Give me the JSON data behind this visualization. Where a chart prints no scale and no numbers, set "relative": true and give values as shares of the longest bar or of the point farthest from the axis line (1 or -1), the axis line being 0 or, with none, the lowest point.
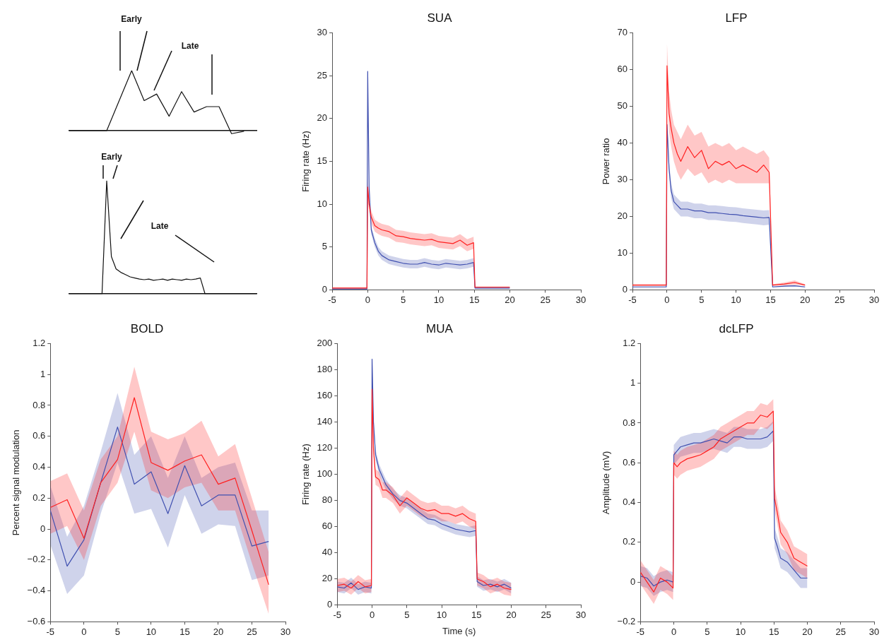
{
  "chart_data": [
    {
      "type": "line",
      "relative": true,
      "categories": [
        null,
        null,
        null,
        null,
        null,
        null,
        null,
        null,
        null,
        null,
        null,
        null,
        null,
        null,
        null,
        null
      ],
      "annotations": [
        "Early",
        "Late"
      ],
      "series": [
        {
          "color": "#111111",
          "values": [
            0,
            0,
            0,
            0,
            0.5,
            1,
            0.5,
            0.61,
            0.24,
            0.65,
            0.31,
            0.4,
            0.4,
            -0.05,
            -0.01,
            null
          ]
        }
      ]
    },
    {
      "type": "line",
      "relative": true,
      "categories": [
        null,
        null,
        null,
        null,
        null,
        null,
        null,
        null,
        null,
        null,
        null,
        null,
        null,
        null,
        null,
        null,
        null,
        null,
        null,
        null,
        null,
        null,
        null,
        null,
        null,
        null,
        null,
        null,
        null,
        null,
        null,
        null,
        null,
        null,
        null,
        null,
        null,
        null,
        null,
        null,
        null
      ],
      "annotations": [
        "Early",
        "Late"
      ],
      "series": [
        {
          "color": "#111111",
          "values": [
            0,
            0,
            0,
            0,
            0,
            0,
            0,
            0,
            1,
            0.33,
            0.22,
            0.19,
            0.17,
            0.15,
            0.14,
            0.13,
            0.125,
            0.13,
            0.12,
            0.125,
            0.13,
            0.12,
            0.13,
            0.125,
            0.12,
            0.13,
            0.125,
            0.13,
            0.14,
            0,
            0,
            0,
            0,
            0,
            0,
            0,
            0,
            0,
            0,
            0,
            0
          ]
        }
      ]
    },
    {
      "type": "line",
      "title": "SUA",
      "ylabel": "Firing rate (Hz)",
      "xlim": [
        -5,
        30
      ],
      "xticks": [
        -5,
        0,
        5,
        10,
        15,
        20,
        25,
        30
      ],
      "ylim": [
        0,
        30
      ],
      "yticks": [
        0,
        5,
        10,
        15,
        20,
        25,
        30
      ],
      "x": [
        -5,
        -2.5,
        -0.1,
        0,
        0.2,
        0.5,
        1,
        1.5,
        2,
        3,
        4,
        5,
        6,
        7,
        8,
        9,
        10,
        11,
        12,
        13,
        14,
        14.9,
        15.1,
        17.5,
        20
      ],
      "series": [
        {
          "color": "#ff2020",
          "values": [
            0.2,
            0.2,
            0.2,
            12,
            10,
            8.5,
            7.5,
            7.2,
            7,
            6.8,
            6.3,
            6.2,
            6,
            5.9,
            5.8,
            5.9,
            5.6,
            5.5,
            5.4,
            5.8,
            5.2,
            5.5,
            0.3,
            0.3,
            0.3
          ],
          "lower": [
            0.1,
            0.1,
            0.1,
            11,
            9.2,
            7.8,
            6.8,
            6.5,
            6.3,
            6.1,
            5.6,
            5.5,
            5.3,
            5.2,
            5.1,
            5.2,
            4.9,
            4.8,
            4.7,
            5.1,
            4.5,
            4.8,
            0.2,
            0.2,
            0.2
          ],
          "upper": [
            0.3,
            0.3,
            0.3,
            13,
            10.8,
            9.2,
            8.2,
            7.9,
            7.7,
            7.5,
            7,
            6.9,
            6.7,
            6.6,
            6.5,
            6.6,
            6.3,
            6.2,
            6.1,
            6.5,
            5.9,
            6.2,
            0.4,
            0.4,
            0.4
          ]
        },
        {
          "color": "#4050b0",
          "values": [
            0.1,
            0.1,
            0.1,
            25.5,
            12,
            7,
            5.5,
            4.5,
            4,
            3.5,
            3.3,
            3.1,
            3,
            3,
            3.2,
            3,
            2.9,
            3.1,
            3,
            2.9,
            3,
            3.2,
            0.2,
            0.2,
            0.2
          ],
          "lower": [
            0.05,
            0.05,
            0.05,
            25,
            11.5,
            6.5,
            5,
            4,
            3.5,
            3,
            2.8,
            2.6,
            2.5,
            2.5,
            2.7,
            2.5,
            2.4,
            2.6,
            2.5,
            2.4,
            2.5,
            2.7,
            0.1,
            0.1,
            0.1
          ],
          "upper": [
            0.15,
            0.15,
            0.15,
            26,
            12.5,
            7.5,
            6,
            5,
            4.5,
            4,
            3.8,
            3.6,
            3.5,
            3.5,
            3.7,
            3.5,
            3.4,
            3.6,
            3.5,
            3.4,
            3.5,
            3.7,
            0.3,
            0.3,
            0.3
          ]
        }
      ]
    },
    {
      "type": "line",
      "title": "LFP",
      "ylabel": "Power ratio",
      "xlim": [
        -5,
        30
      ],
      "xticks": [
        -5,
        0,
        5,
        10,
        15,
        20,
        25,
        30
      ],
      "ylim": [
        0,
        70
      ],
      "yticks": [
        0,
        10,
        20,
        30,
        40,
        50,
        60,
        70
      ],
      "x": [
        -5,
        -2.5,
        -0.1,
        0,
        0.3,
        0.6,
        1,
        1.5,
        2,
        3,
        4,
        5,
        6,
        7,
        8,
        9,
        10,
        11,
        12,
        13,
        14,
        14.8,
        15.3,
        17,
        18.5,
        20
      ],
      "series": [
        {
          "color": "#ff2020",
          "values": [
            1.3,
            1.3,
            1.3,
            61,
            48,
            44,
            40,
            37,
            35,
            39,
            36,
            38,
            33,
            35,
            34,
            35,
            33,
            34,
            33,
            32,
            34,
            32,
            1.3,
            1.6,
            2,
            1.3
          ],
          "lower": [
            1.1,
            1.1,
            1.1,
            55,
            43,
            39,
            35,
            32,
            30,
            33,
            31,
            32,
            29,
            30,
            29,
            30,
            29,
            29,
            29,
            29,
            29,
            29,
            1.1,
            1.2,
            1.4,
            1.1
          ],
          "upper": [
            1.5,
            1.5,
            1.5,
            67,
            54,
            49,
            45,
            43,
            41,
            45,
            42,
            43,
            39,
            40,
            39,
            40,
            38,
            39,
            38,
            37,
            38,
            36,
            1.5,
            2,
            2.6,
            1.5
          ]
        },
        {
          "color": "#4050b0",
          "values": [
            0.8,
            0.8,
            0.8,
            45,
            33,
            27,
            24,
            23,
            22,
            22,
            21.5,
            21.5,
            21,
            21,
            20.8,
            20.6,
            20.5,
            20.2,
            20,
            19.8,
            19.6,
            19.7,
            0.8,
            1,
            1.1,
            0.8
          ],
          "lower": [
            0.7,
            0.7,
            0.7,
            43,
            31,
            25,
            22,
            21,
            20,
            20,
            19.5,
            19.5,
            19,
            19,
            18.8,
            18.6,
            18.5,
            18.2,
            18,
            17.8,
            17.6,
            17.7,
            0.7,
            0.8,
            0.9,
            0.7
          ],
          "upper": [
            0.9,
            0.9,
            0.9,
            47,
            35,
            29,
            26,
            25,
            24,
            24,
            23.5,
            23.5,
            23,
            23,
            22.8,
            22.6,
            22.5,
            22.2,
            22,
            21.8,
            21.6,
            21.7,
            0.9,
            1.2,
            1.3,
            0.9
          ]
        }
      ]
    },
    {
      "type": "line",
      "title": "BOLD",
      "ylabel": "Percent signal modulation",
      "xlim": [
        -5,
        30
      ],
      "xticks": [
        -5,
        0,
        5,
        10,
        15,
        20,
        25,
        30
      ],
      "ylim": [
        -0.6,
        1.2
      ],
      "yticks": [
        {
          "value": -0.6,
          "label": "−0.6"
        },
        {
          "value": -0.4,
          "label": "−0.4"
        },
        {
          "value": -0.2,
          "label": "−0.2"
        },
        0,
        0.2,
        0.4,
        0.6,
        0.8,
        1,
        1.2
      ],
      "x": [
        -5,
        -2.5,
        0,
        2.5,
        5,
        7.5,
        10,
        12.5,
        15,
        17.5,
        20,
        22.5,
        25,
        27.5
      ],
      "series": [
        {
          "color": "#ff2020",
          "values": [
            0.14,
            0.19,
            -0.06,
            0.3,
            0.45,
            0.85,
            0.43,
            0.38,
            0.44,
            0.48,
            0.29,
            0.33,
            -0.01,
            -0.36
          ],
          "lower": [
            -0.03,
            0.02,
            -0.2,
            0.15,
            0.3,
            0.63,
            0.25,
            0.2,
            0.27,
            0.3,
            0.12,
            0.12,
            -0.22,
            -0.55
          ],
          "upper": [
            0.31,
            0.36,
            0.12,
            0.45,
            0.6,
            1.05,
            0.63,
            0.58,
            0.62,
            0.7,
            0.47,
            0.55,
            0.2,
            -0.15
          ]
        },
        {
          "color": "#4050b0",
          "values": [
            0.12,
            -0.24,
            -0.07,
            0.3,
            0.66,
            0.29,
            0.37,
            0.1,
            0.41,
            0.15,
            0.22,
            0.22,
            -0.11,
            -0.08
          ],
          "lower": [
            -0.1,
            -0.42,
            -0.3,
            0.1,
            0.43,
            0.1,
            0.13,
            -0.12,
            0.22,
            -0.03,
            0.03,
            0.02,
            -0.33,
            -0.3
          ],
          "upper": [
            0.28,
            -0.05,
            0.15,
            0.5,
            0.88,
            0.48,
            0.6,
            0.33,
            0.6,
            0.33,
            0.4,
            0.43,
            0.12,
            0.12
          ]
        }
      ]
    },
    {
      "type": "line",
      "title": "MUA",
      "xlabel": "Time (s)",
      "ylabel": "Firing rate (Hz)",
      "xlim": [
        -5,
        30
      ],
      "xticks": [
        -5,
        0,
        5,
        10,
        15,
        20,
        25,
        30
      ],
      "ylim": [
        0,
        200
      ],
      "yticks": [
        0,
        20,
        40,
        60,
        80,
        100,
        120,
        140,
        160,
        180,
        200
      ],
      "x": [
        -5,
        -4,
        -3,
        -2,
        -1,
        -0.1,
        0,
        0.2,
        0.5,
        1,
        1.5,
        2,
        3,
        4,
        5,
        6,
        7,
        8,
        9,
        10,
        11,
        12,
        13,
        14,
        14.9,
        15.1,
        16,
        17,
        18,
        19,
        20
      ],
      "series": [
        {
          "color": "#ff2020",
          "values": [
            15,
            16,
            13,
            18,
            14,
            15,
            165,
            120,
            98,
            96,
            88,
            88,
            84,
            76,
            82,
            78,
            74,
            72,
            73,
            70,
            70,
            68,
            70,
            66,
            64,
            20,
            18,
            14,
            16,
            13,
            12
          ],
          "lower": [
            10,
            11,
            8,
            13,
            9,
            10,
            159,
            114,
            92,
            90,
            82,
            82,
            78,
            70,
            76,
            72,
            68,
            66,
            67,
            64,
            64,
            62,
            64,
            60,
            58,
            15,
            13,
            9,
            11,
            8,
            7
          ],
          "upper": [
            20,
            21,
            18,
            23,
            19,
            20,
            171,
            126,
            104,
            102,
            94,
            94,
            90,
            82,
            88,
            84,
            80,
            78,
            79,
            76,
            76,
            74,
            76,
            72,
            70,
            25,
            23,
            19,
            21,
            18,
            17
          ]
        },
        {
          "color": "#4050b0",
          "values": [
            14,
            13,
            17,
            12,
            14,
            13,
            188,
            140,
            115,
            104,
            98,
            92,
            85,
            80,
            78,
            74,
            70,
            66,
            65,
            62,
            60,
            58,
            57,
            56,
            57,
            18,
            15,
            16,
            14,
            16,
            13
          ],
          "lower": [
            10,
            9,
            13,
            8,
            10,
            9,
            184,
            136,
            111,
            100,
            94,
            88,
            81,
            76,
            74,
            70,
            66,
            62,
            61,
            58,
            56,
            54,
            53,
            52,
            53,
            14,
            11,
            12,
            10,
            12,
            9
          ],
          "upper": [
            18,
            17,
            21,
            16,
            18,
            17,
            192,
            144,
            119,
            108,
            102,
            96,
            89,
            84,
            82,
            78,
            74,
            70,
            69,
            66,
            64,
            62,
            61,
            60,
            61,
            22,
            19,
            20,
            18,
            20,
            17
          ]
        }
      ]
    },
    {
      "type": "line",
      "title": "dcLFP",
      "ylabel": "Amplitude (mV)",
      "xlim": [
        -5,
        30
      ],
      "xticks": [
        -5,
        0,
        5,
        10,
        15,
        20,
        25,
        30
      ],
      "ylim": [
        -0.2,
        1.2
      ],
      "yticks": [
        {
          "value": -0.2,
          "label": "−0.2"
        },
        0,
        0.2,
        0.4,
        0.6,
        0.8,
        1,
        1.2
      ],
      "x": [
        -5,
        -4,
        -3,
        -2,
        -1,
        -0.1,
        0,
        0.5,
        1,
        2,
        3,
        4,
        5,
        6,
        7,
        8,
        9,
        10,
        11,
        12,
        13,
        14,
        14.9,
        15.1,
        15.5,
        16,
        17,
        18,
        19,
        20
      ],
      "series": [
        {
          "color": "#ff2020",
          "values": [
            0.05,
            0,
            -0.05,
            0.02,
            0,
            -0.03,
            0.6,
            0.58,
            0.6,
            0.62,
            0.63,
            0.64,
            0.66,
            0.68,
            0.72,
            0.74,
            0.76,
            0.78,
            0.8,
            0.8,
            0.84,
            0.83,
            0.86,
            0.42,
            0.35,
            0.25,
            0.2,
            0.12,
            0.1,
            0.08
          ],
          "lower": [
            -0.01,
            -0.06,
            -0.11,
            -0.04,
            -0.06,
            -0.09,
            0.54,
            0.52,
            0.54,
            0.56,
            0.57,
            0.58,
            0.6,
            0.62,
            0.66,
            0.68,
            0.7,
            0.72,
            0.74,
            0.74,
            0.78,
            0.77,
            0.8,
            0.36,
            0.29,
            0.19,
            0.14,
            0.06,
            0.04,
            0.02
          ],
          "upper": [
            0.11,
            0.06,
            0.01,
            0.08,
            0.06,
            0.03,
            0.66,
            0.64,
            0.66,
            0.68,
            0.69,
            0.7,
            0.72,
            0.74,
            0.78,
            0.8,
            0.82,
            0.84,
            0.86,
            0.86,
            0.9,
            0.89,
            0.92,
            0.48,
            0.41,
            0.31,
            0.26,
            0.18,
            0.16,
            0.14
          ]
        },
        {
          "color": "#4050b0",
          "values": [
            0.03,
            0.02,
            -0.02,
            0,
            0.01,
            0,
            0.64,
            0.66,
            0.68,
            0.69,
            0.7,
            0.7,
            0.71,
            0.72,
            0.71,
            0.7,
            0.73,
            0.73,
            0.72,
            0.72,
            0.72,
            0.73,
            0.76,
            0.22,
            0.18,
            0.12,
            0.1,
            0.06,
            0.02,
            0.02
          ],
          "lower": [
            -0.02,
            -0.03,
            -0.07,
            -0.05,
            -0.04,
            -0.05,
            0.59,
            0.61,
            0.63,
            0.64,
            0.65,
            0.65,
            0.66,
            0.67,
            0.66,
            0.65,
            0.68,
            0.68,
            0.67,
            0.67,
            0.67,
            0.68,
            0.71,
            0.17,
            0.13,
            0.07,
            0.05,
            0.01,
            -0.03,
            -0.03
          ],
          "upper": [
            0.08,
            0.07,
            0.03,
            0.05,
            0.06,
            0.05,
            0.69,
            0.71,
            0.73,
            0.74,
            0.75,
            0.75,
            0.76,
            0.77,
            0.76,
            0.75,
            0.78,
            0.78,
            0.77,
            0.77,
            0.77,
            0.78,
            0.81,
            0.27,
            0.23,
            0.17,
            0.15,
            0.11,
            0.07,
            0.07
          ]
        }
      ]
    }
  ]
}
